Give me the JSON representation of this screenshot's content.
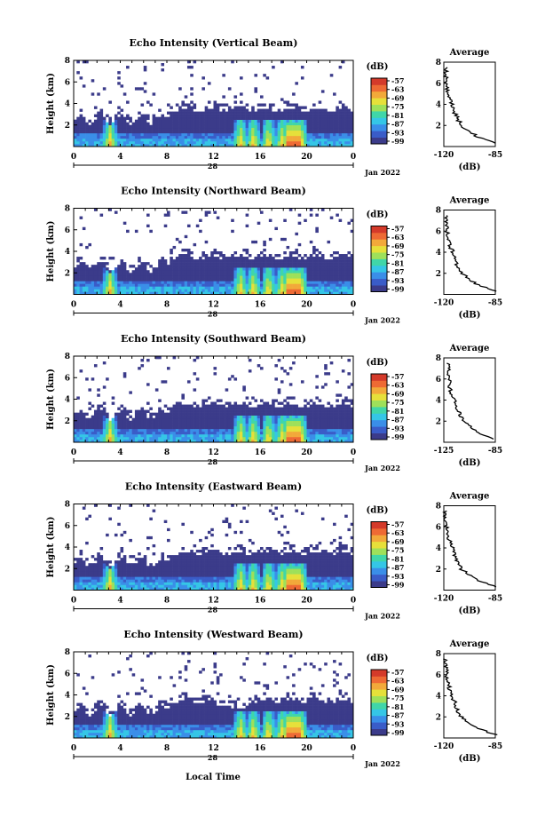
{
  "figure": {
    "x_title": "Local Time",
    "colorbar_ticks": [
      "-57",
      "-63",
      "-69",
      "-75",
      "-81",
      "-87",
      "-93",
      "-99"
    ],
    "colorbar_unit": "(dB)",
    "colormap": [
      "#3b3b8a",
      "#3a5cc8",
      "#3a8ee8",
      "#35c6e6",
      "#40d6a8",
      "#9ee05a",
      "#e6e03a",
      "#f2a93a",
      "#ee6a34",
      "#d43a2a"
    ]
  },
  "chart_data": [
    {
      "type": "heatmap",
      "title": "Echo Intensity (Vertical Beam)",
      "ylabel": "Height (km)",
      "x_ticks": [
        "0",
        "4",
        "8",
        "12",
        "16",
        "20",
        "0"
      ],
      "date_label": "28",
      "date_suffix": "Jan 2022",
      "ylim": [
        0,
        8
      ],
      "y_ticks": [
        "8",
        "6",
        "4",
        "2"
      ],
      "value_range_db": [
        -99,
        -57
      ],
      "profile": {
        "title": "Average",
        "xlabel": "(dB)",
        "x_ticks": [
          "-120",
          "-85"
        ],
        "y_ticks": [
          "8",
          "6",
          "4",
          "2"
        ],
        "height_km": [
          0.3,
          1,
          2,
          3,
          4,
          5,
          6,
          7.5
        ],
        "db": [
          -85,
          -98,
          -108,
          -112,
          -114,
          -117,
          -118,
          -119
        ]
      }
    },
    {
      "type": "heatmap",
      "title": "Echo Intensity (Northward Beam)",
      "ylabel": "Height (km)",
      "x_ticks": [
        "0",
        "4",
        "8",
        "12",
        "16",
        "20",
        "0"
      ],
      "date_label": "28",
      "date_suffix": "Jan 2022",
      "ylim": [
        0,
        8
      ],
      "y_ticks": [
        "8",
        "6",
        "4",
        "2"
      ],
      "value_range_db": [
        -99,
        -57
      ],
      "profile": {
        "title": "Average",
        "xlabel": "(dB)",
        "x_ticks": [
          "-120",
          "-85"
        ],
        "y_ticks": [
          "8",
          "6",
          "4",
          "2"
        ],
        "height_km": [
          0.3,
          1,
          2,
          3,
          4,
          5,
          6,
          7.5
        ],
        "db": [
          -85,
          -98,
          -108,
          -112,
          -114,
          -117,
          -118,
          -119
        ]
      }
    },
    {
      "type": "heatmap",
      "title": "Echo Intensity (Southward Beam)",
      "ylabel": "Height (km)",
      "x_ticks": [
        "0",
        "4",
        "8",
        "12",
        "16",
        "20",
        "0"
      ],
      "date_label": "28",
      "date_suffix": "Jan 2022",
      "ylim": [
        0,
        8
      ],
      "y_ticks": [
        "8",
        "6",
        "4",
        "2"
      ],
      "value_range_db": [
        -99,
        -57
      ],
      "profile": {
        "title": "Average",
        "xlabel": "(dB)",
        "x_ticks": [
          "-125",
          "-85"
        ],
        "y_ticks": [
          "8",
          "6",
          "4",
          "2"
        ],
        "height_km": [
          0.3,
          1,
          2,
          3,
          4,
          5,
          6,
          7.5
        ],
        "db": [
          -85,
          -100,
          -110,
          -114,
          -117,
          -120,
          -121,
          -122
        ]
      }
    },
    {
      "type": "heatmap",
      "title": "Echo Intensity (Eastward Beam)",
      "ylabel": "Height (km)",
      "x_ticks": [
        "0",
        "4",
        "8",
        "12",
        "16",
        "20",
        "0"
      ],
      "date_label": "28",
      "date_suffix": "Jan 2022",
      "ylim": [
        0,
        8
      ],
      "y_ticks": [
        "8",
        "6",
        "4",
        "2"
      ],
      "value_range_db": [
        -99,
        -57
      ],
      "profile": {
        "title": "Average",
        "xlabel": "(dB)",
        "x_ticks": [
          "-120",
          "-85"
        ],
        "y_ticks": [
          "8",
          "6",
          "4",
          "2"
        ],
        "height_km": [
          0.3,
          1,
          2,
          3,
          4,
          5,
          6,
          7.5
        ],
        "db": [
          -85,
          -98,
          -108,
          -112,
          -114,
          -117,
          -118,
          -119
        ]
      }
    },
    {
      "type": "heatmap",
      "title": "Echo Intensity (Westward Beam)",
      "ylabel": "Height (km)",
      "x_ticks": [
        "0",
        "4",
        "8",
        "12",
        "16",
        "20",
        "0"
      ],
      "date_label": "28",
      "date_suffix": "Jan 2022",
      "ylim": [
        0,
        8
      ],
      "y_ticks": [
        "8",
        "6",
        "4",
        "2"
      ],
      "value_range_db": [
        -99,
        -57
      ],
      "profile": {
        "title": "Average",
        "xlabel": "(dB)",
        "x_ticks": [
          "-120",
          "-85"
        ],
        "y_ticks": [
          "8",
          "6",
          "4",
          "2"
        ],
        "height_km": [
          0.3,
          1,
          2,
          3,
          4,
          5,
          6,
          7.5
        ],
        "db": [
          -85,
          -98,
          -108,
          -112,
          -114,
          -117,
          -118,
          -119
        ]
      }
    }
  ]
}
